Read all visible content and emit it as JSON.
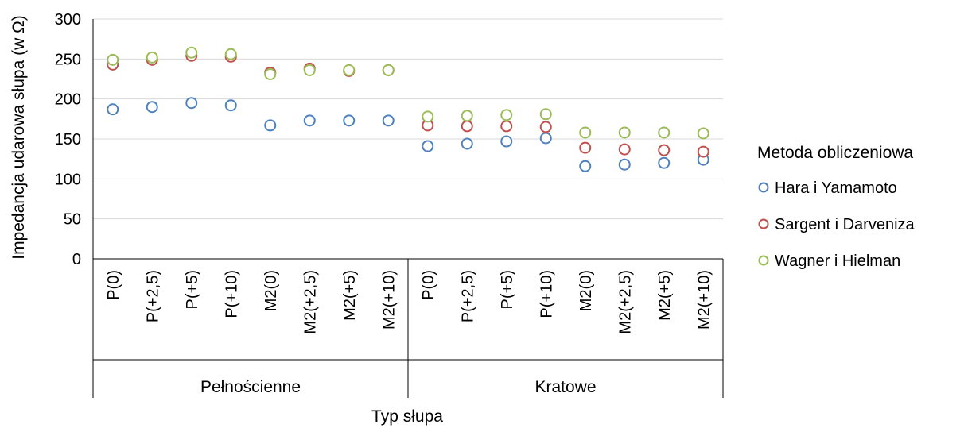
{
  "chart_data": {
    "type": "scatter",
    "title": "",
    "xlabel": "Typ słupa",
    "ylabel": "Impedancja udarowa słupa (w Ω)",
    "ylim": [
      0,
      300
    ],
    "yticks": [
      0,
      50,
      100,
      150,
      200,
      250,
      300
    ],
    "grid": true,
    "legend_position": "right",
    "legend_title": "Metoda obliczeniowa",
    "groups": [
      {
        "name": "Pełnościenne",
        "categories": [
          "P(0)",
          "P(+2,5)",
          "P(+5)",
          "P(+10)",
          "M2(0)",
          "M2(+2,5)",
          "M2(+5)",
          "M2(+10)"
        ]
      },
      {
        "name": "Kratowe",
        "categories": [
          "P(0)",
          "P(+2,5)",
          "P(+5)",
          "P(+10)",
          "M2(0)",
          "M2(+2,5)",
          "M2(+5)",
          "M2(+10)"
        ]
      }
    ],
    "series": [
      {
        "name": "Hara i Yamamoto",
        "color": "#4f81bd",
        "values": [
          187,
          190,
          195,
          192,
          167,
          173,
          173,
          173,
          141,
          144,
          147,
          151,
          116,
          118,
          120,
          124
        ]
      },
      {
        "name": "Sargent i Darveniza",
        "color": "#c0504d",
        "values": [
          243,
          249,
          254,
          253,
          233,
          238,
          235,
          236,
          167,
          166,
          166,
          165,
          139,
          137,
          136,
          134
        ]
      },
      {
        "name": "Wagner i Hielman",
        "color": "#9bbb59",
        "values": [
          249,
          252,
          258,
          256,
          231,
          236,
          236,
          236,
          178,
          179,
          180,
          181,
          158,
          158,
          158,
          157
        ]
      }
    ]
  }
}
